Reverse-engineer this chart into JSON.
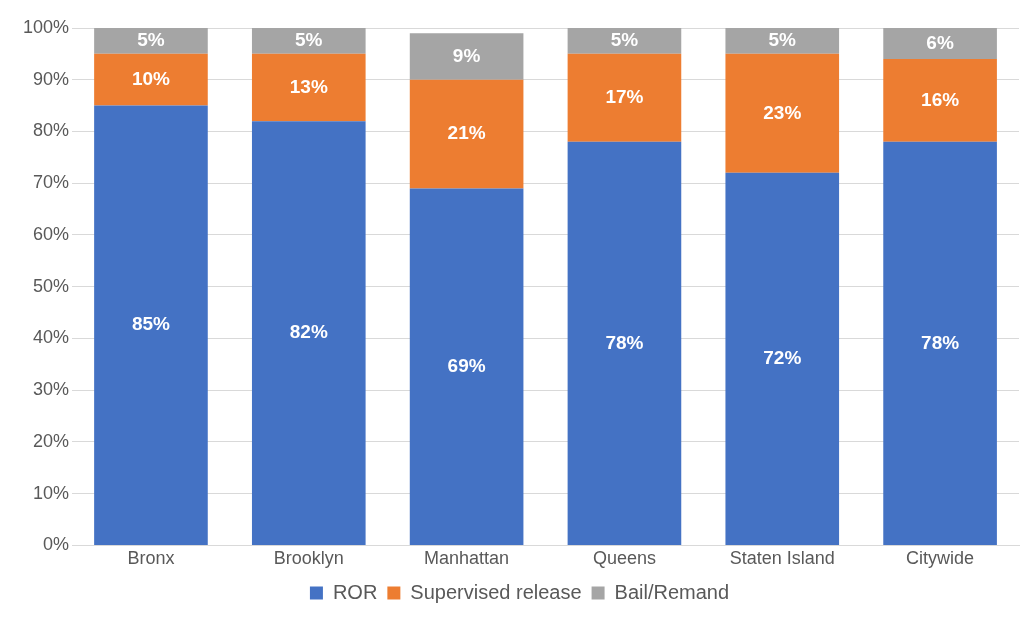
{
  "chart_data": {
    "type": "bar",
    "stacked": true,
    "categories": [
      "Bronx",
      "Brooklyn",
      "Manhattan",
      "Queens",
      "Staten Island",
      "Citywide"
    ],
    "series": [
      {
        "name": "ROR",
        "color": "#4472c4",
        "values": [
          85,
          82,
          69,
          78,
          72,
          78
        ],
        "value_labels": [
          "85%",
          "82%",
          "69%",
          "78%",
          "72%",
          "78%"
        ]
      },
      {
        "name": "Supervised release",
        "color": "#ed7d31",
        "values": [
          10,
          13,
          21,
          17,
          23,
          16
        ],
        "value_labels": [
          "10%",
          "13%",
          "21%",
          "17%",
          "23%",
          "16%"
        ]
      },
      {
        "name": "Bail/Remand",
        "color": "#a5a5a5",
        "values": [
          5,
          5,
          9,
          5,
          5,
          6
        ],
        "value_labels": [
          "5%",
          "5%",
          "9%",
          "5%",
          "5%",
          "6%"
        ]
      }
    ],
    "ylim": [
      0,
      100
    ],
    "yticks": [
      {
        "value": 0,
        "label": "0%"
      },
      {
        "value": 10,
        "label": "10%"
      },
      {
        "value": 20,
        "label": "20%"
      },
      {
        "value": 30,
        "label": "30%"
      },
      {
        "value": 40,
        "label": "40%"
      },
      {
        "value": 50,
        "label": "50%"
      },
      {
        "value": 60,
        "label": "60%"
      },
      {
        "value": 70,
        "label": "70%"
      },
      {
        "value": 80,
        "label": "80%"
      },
      {
        "value": 90,
        "label": "90%"
      },
      {
        "value": 100,
        "label": "100%"
      }
    ],
    "grid": "y",
    "legend": "bottom"
  }
}
